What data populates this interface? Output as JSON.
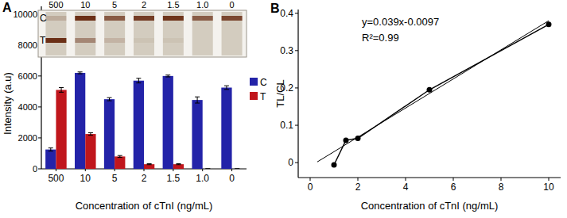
{
  "chart_data": [
    {
      "type": "bar",
      "title": "A",
      "x_label": "Concentration of cTnI (ng/mL)",
      "y_label": "Intensity (a.u)",
      "categories": [
        "500",
        "10",
        "5",
        "2",
        "1.5",
        "1.0",
        "0"
      ],
      "series": [
        {
          "name": "C",
          "color": "#2323a8",
          "values": [
            1250,
            6200,
            4500,
            5700,
            6000,
            4450,
            5250
          ],
          "errors": [
            100,
            60,
            100,
            150,
            60,
            200,
            120
          ]
        },
        {
          "name": "T",
          "color": "#c0161c",
          "values": [
            5100,
            2250,
            800,
            300,
            300,
            0,
            0
          ],
          "errors": [
            150,
            80,
            60,
            30,
            30,
            0,
            0
          ]
        }
      ],
      "ylim": [
        0,
        10500
      ],
      "yticks": [
        0,
        2000,
        4000,
        6000,
        8000,
        10000
      ],
      "legend": "right"
    },
    {
      "type": "scatter",
      "title": "B",
      "x_label": "Concentration of cTnI (ng/mL)",
      "y_label": "TL/CL",
      "annotations": [
        "y=0.039x-0.0097",
        "R²=0.99"
      ],
      "series": [
        {
          "type": "scatter",
          "x": [
            1.0,
            1.5,
            2,
            5,
            10
          ],
          "values": [
            -0.006,
            0.06,
            0.065,
            0.195,
            0.37
          ],
          "color": "#000000",
          "marker": "circle",
          "line_style": "solid"
        },
        {
          "type": "line",
          "x": [
            0.3,
            10
          ],
          "values": [
            0.002,
            0.38
          ],
          "color": "#000000",
          "marker": "none",
          "line_style": "solid"
        }
      ],
      "xlim": [
        -0.5,
        10.5
      ],
      "ylim": [
        -0.04,
        0.41
      ],
      "xticks": [
        0,
        2,
        4,
        6,
        8,
        10
      ],
      "yticks": [
        0,
        0.1,
        0.2,
        0.3,
        0.4
      ]
    }
  ]
}
